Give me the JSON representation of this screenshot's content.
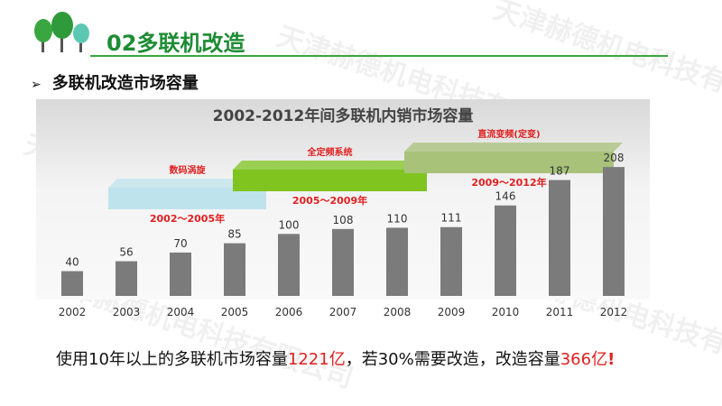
{
  "header": {
    "title": "02多联机改造",
    "subtitle": "多联机改造市场容量"
  },
  "watermark": "天津赫德机电科技有限公司",
  "chart_data": {
    "type": "bar",
    "title": "2002-2012年间多联机内销市场容量",
    "categories": [
      "2002",
      "2003",
      "2004",
      "2005",
      "2006",
      "2007",
      "2008",
      "2009",
      "2010",
      "2011",
      "2012"
    ],
    "values": [
      40,
      56,
      70,
      85,
      100,
      108,
      110,
      111,
      146,
      187,
      208
    ],
    "ylim": [
      0,
      230
    ],
    "bar_color": "#7b7b7b",
    "phases": [
      {
        "name": "数码涡旋",
        "period": "2002～2005年",
        "color": "#bfe3ec"
      },
      {
        "name": "全定频系统",
        "period": "2005～2009年",
        "color": "#7fc41f"
      },
      {
        "name": "直流变频(定变)",
        "period": "2009～2012年",
        "color": "#a8c27a"
      }
    ]
  },
  "footer": {
    "text_before": "使用10年以上的多联机市场容量",
    "value1": "1221亿",
    "text_middle": "，若30%需要改造，改造容量",
    "value2": "366亿",
    "ending": "!"
  }
}
